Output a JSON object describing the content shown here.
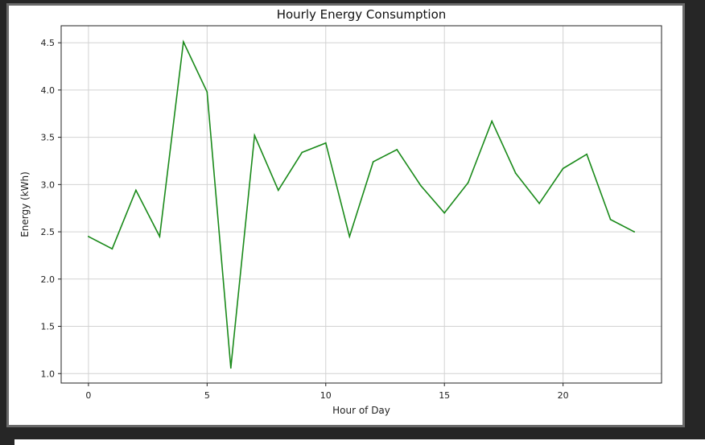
{
  "chart_data": {
    "type": "line",
    "title": "Hourly Energy Consumption",
    "xlabel": "Hour of Day",
    "ylabel": "Energy (kWh)",
    "xlim": [
      -1.15,
      24.15
    ],
    "ylim": [
      0.9,
      4.68
    ],
    "xticks": [
      0,
      5,
      10,
      15,
      20
    ],
    "yticks": [
      1.0,
      1.5,
      2.0,
      2.5,
      3.0,
      3.5,
      4.0,
      4.5
    ],
    "grid": true,
    "series": [
      {
        "color": "#1a8a1a",
        "x": [
          0,
          1,
          2,
          3,
          4,
          5,
          6,
          7,
          8,
          9,
          10,
          11,
          12,
          13,
          14,
          15,
          16,
          17,
          18,
          19,
          20,
          21,
          22,
          23
        ],
        "values": [
          2.45,
          2.32,
          2.94,
          2.45,
          4.51,
          3.98,
          1.06,
          3.52,
          2.94,
          3.34,
          3.44,
          2.45,
          3.24,
          3.37,
          2.99,
          2.7,
          3.02,
          3.67,
          3.12,
          2.8,
          3.17,
          3.32,
          2.63,
          2.5
        ]
      }
    ]
  }
}
